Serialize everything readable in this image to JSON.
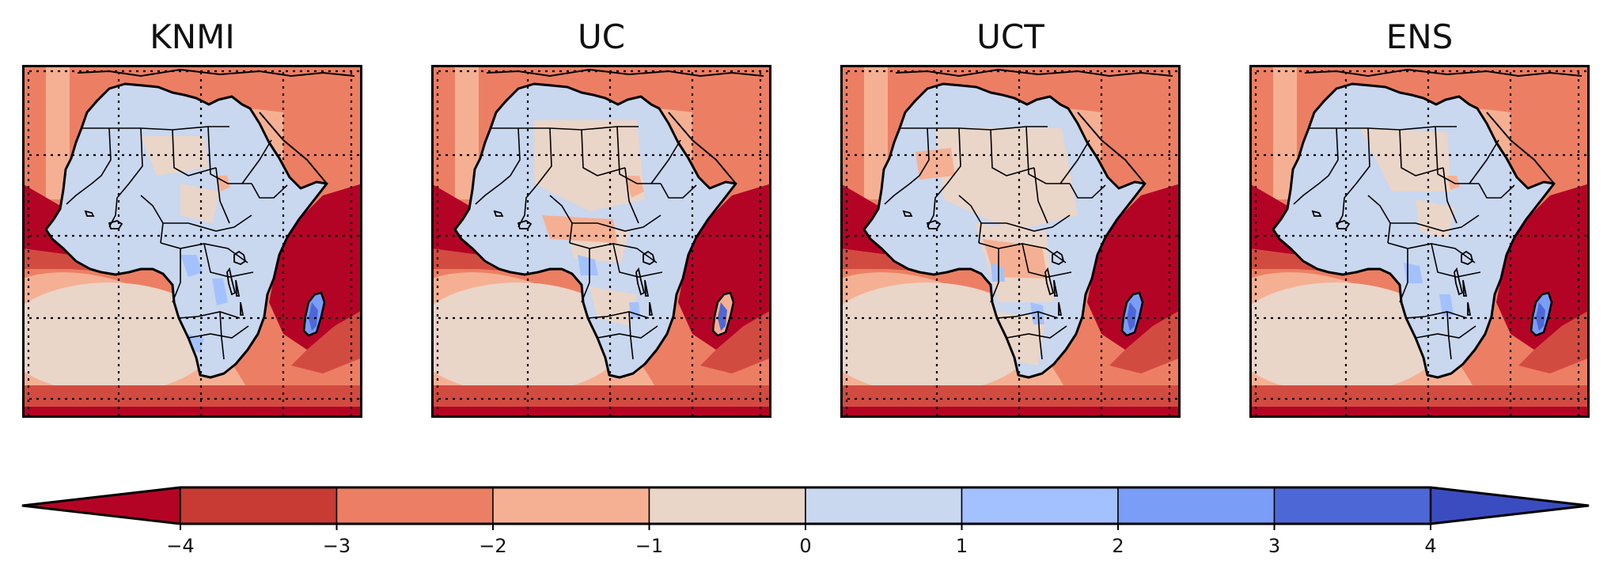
{
  "panels": [
    {
      "title": "KNMI"
    },
    {
      "title": "UC"
    },
    {
      "title": "UCT"
    },
    {
      "title": "ENS"
    }
  ],
  "colorbar": {
    "ticks": [
      "−4",
      "−3",
      "−2",
      "−1",
      "0",
      "1",
      "2",
      "3",
      "4"
    ],
    "colors": {
      "under": "#b40426",
      "bins": [
        "#c83a34",
        "#ec7f63",
        "#f5b093",
        "#ead5c9",
        "#c9d7ef",
        "#a3c1fe",
        "#7a9df8",
        "#4d68d6"
      ],
      "over": "#3b4cc0"
    }
  },
  "colors": {
    "ocean_deep_dry": "#b40426",
    "ocean_dry": "#d24b40",
    "ocean_mid": "#ec7f63",
    "ocean_light": "#f5b093",
    "neutral": "#ead5c9",
    "land_wet": "#c9d7ef",
    "wet": "#a3c1fe",
    "wetter": "#7a9df8",
    "wettest": "#4d68d6",
    "coast": "#000000"
  }
}
